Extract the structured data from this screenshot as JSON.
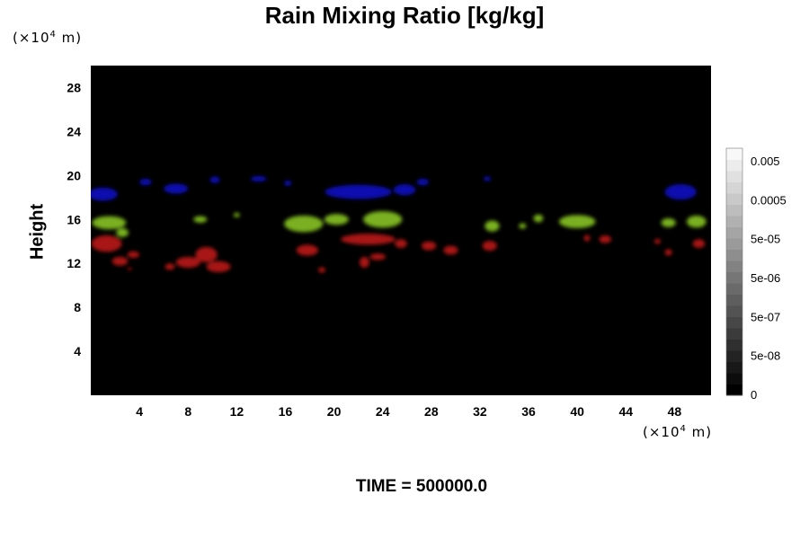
{
  "chart_data": {
    "type": "heatmap",
    "title": "Rain Mixing Ratio [kg/kg]",
    "xlabel": "",
    "ylabel": "Height",
    "x_unit": {
      "prefix": "(×10",
      "exp": "4",
      "suffix": " m)"
    },
    "y_unit": {
      "prefix": "(×10",
      "exp": "4",
      "suffix": " m)"
    },
    "xlim": [
      0,
      51
    ],
    "ylim": [
      0,
      30
    ],
    "x_ticks": [
      4,
      8,
      12,
      16,
      20,
      24,
      28,
      32,
      36,
      40,
      44,
      48
    ],
    "y_ticks": [
      4,
      8,
      12,
      16,
      20,
      24,
      28
    ],
    "background_color": "#000000",
    "colorbar": {
      "levels": 22,
      "tick_labels": [
        "0.005",
        "0.0005",
        "5e-05",
        "5e-06",
        "5e-07",
        "5e-08",
        "0"
      ]
    },
    "regions": [
      {
        "color": "#1010b0",
        "blobs": [
          [
            1.0,
            18.3,
            2.4,
            1.2
          ],
          [
            4.5,
            19.4,
            1.0,
            0.6
          ],
          [
            7.0,
            18.8,
            2.0,
            0.9
          ],
          [
            10.2,
            19.6,
            0.8,
            0.6
          ],
          [
            13.8,
            19.7,
            1.3,
            0.5
          ],
          [
            16.2,
            19.3,
            0.6,
            0.5
          ],
          [
            22.0,
            18.5,
            5.5,
            1.3
          ],
          [
            25.8,
            18.7,
            1.8,
            1.0
          ],
          [
            27.3,
            19.4,
            1.0,
            0.6
          ],
          [
            32.6,
            19.7,
            0.6,
            0.4
          ],
          [
            48.5,
            18.5,
            2.6,
            1.4
          ]
        ]
      },
      {
        "color": "#7ab020",
        "blobs": [
          [
            1.5,
            15.7,
            2.8,
            1.2
          ],
          [
            2.6,
            14.8,
            1.0,
            0.8
          ],
          [
            9.0,
            16.0,
            1.1,
            0.6
          ],
          [
            12.0,
            16.4,
            0.5,
            0.4
          ],
          [
            17.5,
            15.6,
            3.2,
            1.5
          ],
          [
            20.2,
            16.0,
            2.0,
            1.0
          ],
          [
            24.0,
            16.0,
            3.2,
            1.5
          ],
          [
            33.0,
            15.4,
            1.2,
            1.0
          ],
          [
            35.5,
            15.4,
            0.6,
            0.5
          ],
          [
            36.8,
            16.1,
            0.8,
            0.7
          ],
          [
            40.0,
            15.8,
            3.0,
            1.2
          ],
          [
            47.5,
            15.7,
            1.2,
            0.8
          ],
          [
            49.8,
            15.8,
            1.6,
            1.1
          ]
        ]
      },
      {
        "color": "#a81818",
        "blobs": [
          [
            1.3,
            13.8,
            2.5,
            1.5
          ],
          [
            2.4,
            12.2,
            1.3,
            0.8
          ],
          [
            3.5,
            12.8,
            1.0,
            0.6
          ],
          [
            3.2,
            11.5,
            0.3,
            0.3
          ],
          [
            8.0,
            12.1,
            2.0,
            1.0
          ],
          [
            6.5,
            11.7,
            0.8,
            0.6
          ],
          [
            9.5,
            12.8,
            1.8,
            1.4
          ],
          [
            10.5,
            11.7,
            2.0,
            1.0
          ],
          [
            17.8,
            13.2,
            1.8,
            1.0
          ],
          [
            19.0,
            11.4,
            0.6,
            0.5
          ],
          [
            22.8,
            14.2,
            4.5,
            1.0
          ],
          [
            25.5,
            13.8,
            1.0,
            0.8
          ],
          [
            22.5,
            12.1,
            0.8,
            1.0
          ],
          [
            23.6,
            12.6,
            1.3,
            0.6
          ],
          [
            27.8,
            13.6,
            1.2,
            0.8
          ],
          [
            29.6,
            13.2,
            1.2,
            0.8
          ],
          [
            32.8,
            13.6,
            1.2,
            0.9
          ],
          [
            40.8,
            14.3,
            0.5,
            0.6
          ],
          [
            42.3,
            14.2,
            1.0,
            0.7
          ],
          [
            46.6,
            14.0,
            0.5,
            0.5
          ],
          [
            47.5,
            13.0,
            0.6,
            0.6
          ],
          [
            50.0,
            13.8,
            1.0,
            0.8
          ]
        ]
      }
    ]
  },
  "footer": {
    "text": "TIME = 500000.0"
  }
}
